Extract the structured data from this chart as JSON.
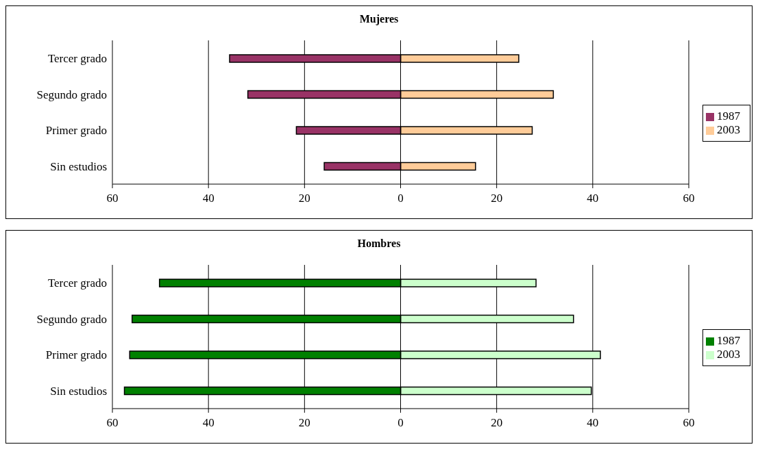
{
  "chart_data": [
    {
      "type": "bar",
      "title": "Mujeres",
      "orientation": "horizontal",
      "stacked": true,
      "categories": [
        "Tercer grado",
        "Segundo grado",
        "Primer grado",
        "Sin estudios"
      ],
      "series": [
        {
          "name": "2003",
          "color": "#ffcc99",
          "values": [
            24.6,
            31.8,
            27.4,
            15.6
          ]
        },
        {
          "name": "1987",
          "color": "#993366",
          "values": [
            -35.6,
            -31.8,
            -21.7,
            -15.9
          ]
        }
      ],
      "xlim": [
        -60,
        60
      ],
      "xticks": [
        {
          "value": -60,
          "label": "60"
        },
        {
          "value": -40,
          "label": "40"
        },
        {
          "value": -20,
          "label": "20"
        },
        0,
        20,
        40,
        60
      ],
      "grid": "x",
      "legend": "right"
    },
    {
      "type": "bar",
      "title": "Hombres",
      "orientation": "horizontal",
      "stacked": true,
      "categories": [
        "Tercer grado",
        "Segundo grado",
        "Primer grado",
        "Sin estudios"
      ],
      "series": [
        {
          "name": "2003",
          "color": "#ccffcc",
          "values": [
            28.2,
            36.0,
            41.6,
            39.7
          ]
        },
        {
          "name": "1987",
          "color": "#008000",
          "values": [
            -50.2,
            -55.9,
            -56.4,
            -57.5
          ]
        }
      ],
      "xlim": [
        -60,
        60
      ],
      "xticks": [
        {
          "value": -60,
          "label": "60"
        },
        {
          "value": -40,
          "label": "40"
        },
        {
          "value": -20,
          "label": "20"
        },
        0,
        20,
        40,
        60
      ],
      "grid": "x",
      "legend": "right"
    }
  ]
}
